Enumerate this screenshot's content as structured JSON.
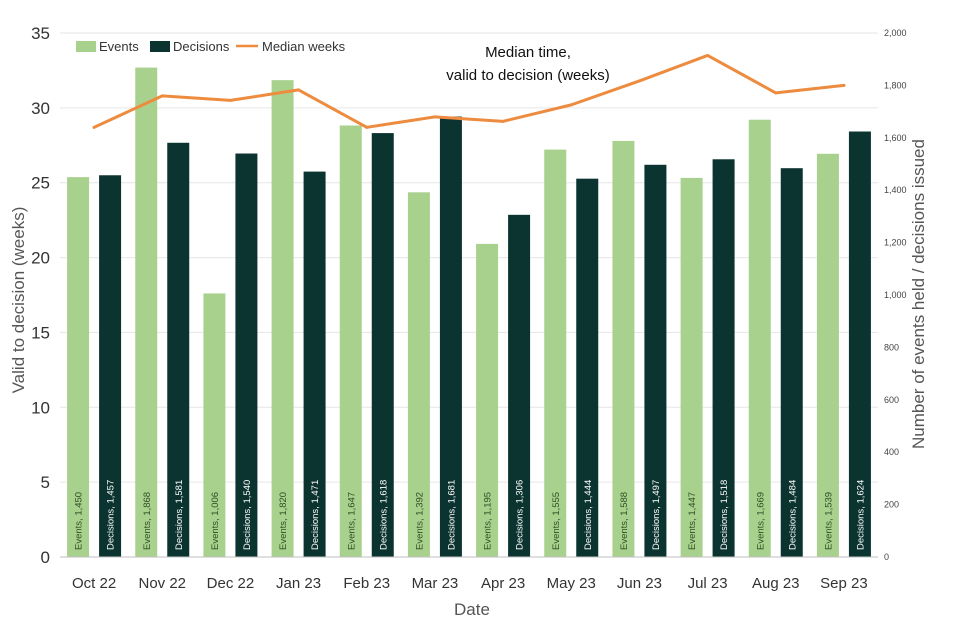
{
  "chart_data": {
    "type": "bar",
    "title": "",
    "xlabel": "Date",
    "ylabel": "Valid to decision (weeks)",
    "y2label": "Number of events held / decisions issued",
    "categories": [
      "Oct 22",
      "Nov 22",
      "Dec 22",
      "Jan 23",
      "Feb 23",
      "Mar 23",
      "Apr 23",
      "May 23",
      "Jun 23",
      "Jul 23",
      "Aug 23",
      "Sep 23"
    ],
    "ylim": [
      0,
      35
    ],
    "y_ticks": [
      "0",
      "5",
      "10",
      "15",
      "20",
      "25",
      "30",
      "35"
    ],
    "y_tick_values": [
      0,
      5,
      10,
      15,
      20,
      25,
      30,
      35
    ],
    "y2lim": [
      0,
      2000
    ],
    "y2_ticks": [
      "0",
      "200",
      "400",
      "600",
      "800",
      "1,000",
      "1,200",
      "1,400",
      "1,600",
      "1,800",
      "2,000"
    ],
    "y2_tick_values": [
      0,
      200,
      400,
      600,
      800,
      1000,
      1200,
      1400,
      1600,
      1800,
      2000
    ],
    "series": [
      {
        "name": "Events",
        "type": "bar",
        "axis": "right",
        "color": "#a9d18e",
        "label_color": "#2e4f23",
        "values": [
          1450,
          1868,
          1006,
          1820,
          1647,
          1392,
          1195,
          1555,
          1588,
          1447,
          1669,
          1539
        ],
        "labels": [
          "Events, 1,450",
          "Events, 1,868",
          "Events, 1,006",
          "Events, 1,820",
          "Events, 1,647",
          "Events, 1,392",
          "Events, 1,195",
          "Events, 1,555",
          "Events, 1,588",
          "Events, 1,447",
          "Events, 1,669",
          "Events, 1,539"
        ]
      },
      {
        "name": "Decisions",
        "type": "bar",
        "axis": "right",
        "color": "#0b3330",
        "label_color": "#ffffff",
        "values": [
          1457,
          1581,
          1540,
          1471,
          1618,
          1681,
          1306,
          1444,
          1497,
          1518,
          1484,
          1624
        ],
        "labels": [
          "Decisions, 1,457",
          "Decisions, 1,581",
          "Decisions, 1,540",
          "Decisions, 1,471",
          "Decisions, 1,618",
          "Decisions, 1,681",
          "Decisions, 1,306",
          "Decisions, 1,444",
          "Decisions, 1,497",
          "Decisions, 1,518",
          "Decisions, 1,484",
          "Decisions, 1,624"
        ]
      },
      {
        "name": "Median weeks",
        "type": "line",
        "axis": "left",
        "color": "#ed8b3f",
        "values": [
          28.7,
          30.8,
          30.5,
          31.2,
          28.7,
          29.4,
          29.1,
          30.2,
          31.8,
          33.5,
          31.0,
          31.5
        ]
      }
    ],
    "legend": [
      "Events",
      "Decisions",
      "Median weeks"
    ],
    "legend_position": "top-left",
    "annotation": [
      "Median time,",
      "valid to decision (weeks)"
    ],
    "grid": true
  }
}
